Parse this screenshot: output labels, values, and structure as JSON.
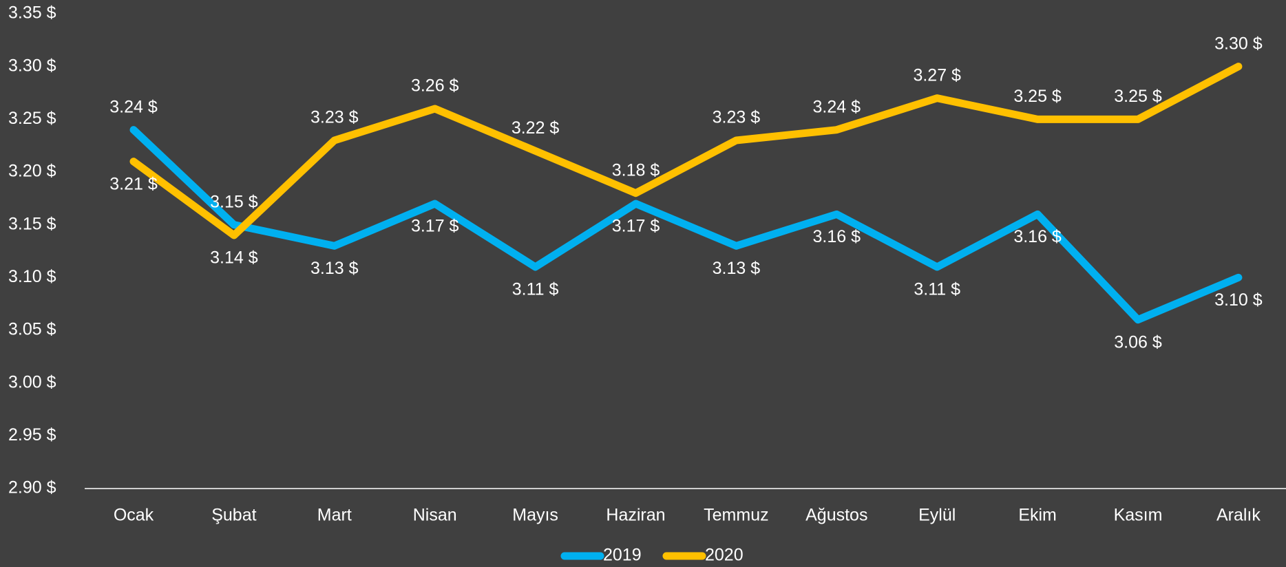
{
  "chart_data": {
    "type": "line",
    "categories": [
      "Ocak",
      "Şubat",
      "Mart",
      "Nisan",
      "Mayıs",
      "Haziran",
      "Temmuz",
      "Ağustos",
      "Eylül",
      "Ekim",
      "Kasım",
      "Aralık"
    ],
    "series": [
      {
        "name": "2019",
        "color": "#00b0f0",
        "values": [
          3.24,
          3.15,
          3.13,
          3.17,
          3.11,
          3.17,
          3.13,
          3.16,
          3.11,
          3.16,
          3.06,
          3.1
        ],
        "value_labels": [
          "3.24 $",
          "3.15 $",
          "3.13 $",
          "3.17 $",
          "3.11 $",
          "3.17 $",
          "3.13 $",
          "3.16 $",
          "3.11 $",
          "3.16 $",
          "3.06 $",
          "3.10 $"
        ]
      },
      {
        "name": "2020",
        "color": "#ffc000",
        "values": [
          3.21,
          3.14,
          3.23,
          3.26,
          3.22,
          3.18,
          3.23,
          3.24,
          3.27,
          3.25,
          3.25,
          3.3
        ],
        "value_labels": [
          "3.21 $",
          "3.14 $",
          "3.23 $",
          "3.26 $",
          "3.22 $",
          "3.18 $",
          "3.23 $",
          "3.24 $",
          "3.27 $",
          "3.25 $",
          "3.25 $",
          "3.30 $"
        ]
      }
    ],
    "ylim": [
      2.9,
      3.35
    ],
    "yticks": [
      {
        "value": 2.9,
        "label": "2.90 $"
      },
      {
        "value": 2.95,
        "label": "2.95 $"
      },
      {
        "value": 3.0,
        "label": "3.00 $"
      },
      {
        "value": 3.05,
        "label": "3.05 $"
      },
      {
        "value": 3.1,
        "label": "3.10 $"
      },
      {
        "value": 3.15,
        "label": "3.15 $"
      },
      {
        "value": 3.2,
        "label": "3.20 $"
      },
      {
        "value": 3.25,
        "label": "3.25 $"
      },
      {
        "value": 3.3,
        "label": "3.30 $"
      },
      {
        "value": 3.35,
        "label": "3.35 $"
      }
    ],
    "grid": false,
    "legend": "bottom"
  }
}
